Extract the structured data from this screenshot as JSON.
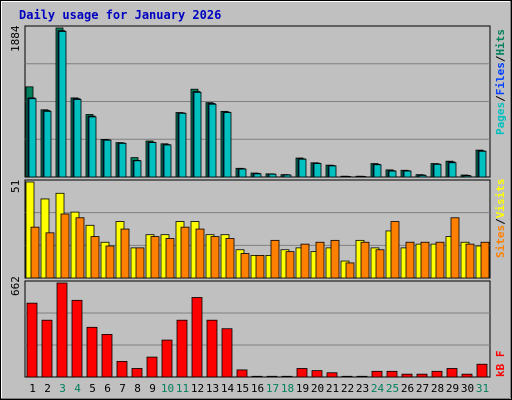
{
  "title": "Daily usage for January 2026",
  "colors": {
    "background": "#C0C0C0",
    "plot_background": "#C0C0C0",
    "title": "#0000C0",
    "hits": "#00805C",
    "files": "#0040FF",
    "pages": "#00C0C0",
    "visits": "#FFFF00",
    "sites": "#FF8000",
    "kbytes": "#FF0000",
    "weekend_label": "#00805C",
    "weekday_label": "#000000"
  },
  "chart_data": [
    {
      "type": "bar",
      "panel": "top",
      "y_max_label": "1884",
      "ylim": [
        0,
        1884
      ],
      "categories": [
        "1",
        "2",
        "3",
        "4",
        "5",
        "6",
        "7",
        "8",
        "9",
        "10",
        "11",
        "12",
        "13",
        "14",
        "15",
        "16",
        "17",
        "18",
        "19",
        "20",
        "21",
        "22",
        "23",
        "24",
        "25",
        "26",
        "27",
        "28",
        "29",
        "30",
        "31"
      ],
      "weekend_days": [
        "3",
        "4",
        "10",
        "11",
        "17",
        "18",
        "24",
        "25",
        "31"
      ],
      "legend": [
        "Pages",
        "/",
        "Files",
        "/",
        "Hits"
      ],
      "series": [
        {
          "name": "Hits",
          "values": [
            1140,
            850,
            1884,
            1000,
            790,
            475,
            435,
            245,
            455,
            420,
            815,
            1110,
            940,
            830,
            110,
            50,
            40,
            30,
            240,
            180,
            150,
            10,
            10,
            170,
            90,
            85,
            30,
            170,
            200,
            25,
            340
          ]
        },
        {
          "name": "Files",
          "values": [
            1000,
            840,
            1850,
            990,
            770,
            470,
            430,
            210,
            440,
            410,
            810,
            1080,
            930,
            820,
            105,
            45,
            38,
            28,
            230,
            175,
            145,
            8,
            8,
            160,
            80,
            80,
            25,
            165,
            190,
            20,
            330
          ]
        },
        {
          "name": "Pages",
          "values": [
            990,
            830,
            1840,
            980,
            760,
            465,
            425,
            205,
            435,
            405,
            805,
            1070,
            920,
            815,
            100,
            40,
            35,
            25,
            225,
            170,
            140,
            5,
            5,
            155,
            75,
            75,
            20,
            160,
            180,
            15,
            325
          ]
        }
      ]
    },
    {
      "type": "bar",
      "panel": "middle",
      "y_max_label": "51",
      "ylim": [
        0,
        51
      ],
      "categories": [
        "1",
        "2",
        "3",
        "4",
        "5",
        "6",
        "7",
        "8",
        "9",
        "10",
        "11",
        "12",
        "13",
        "14",
        "15",
        "16",
        "17",
        "18",
        "19",
        "20",
        "21",
        "22",
        "23",
        "24",
        "25",
        "26",
        "27",
        "28",
        "29",
        "30",
        "31"
      ],
      "legend": [
        "Sites",
        "/",
        "Visits"
      ],
      "series": [
        {
          "name": "Visits",
          "values": [
            51,
            42,
            45,
            35,
            28,
            19,
            30,
            16,
            23,
            23,
            30,
            30,
            23,
            23,
            15,
            12,
            12,
            15,
            16,
            14,
            16,
            9,
            20,
            16,
            25,
            16,
            18,
            18,
            22,
            19,
            17
          ]
        },
        {
          "name": "Sites",
          "values": [
            27,
            24,
            34,
            32,
            22,
            17,
            26,
            16,
            22,
            21,
            27,
            26,
            22,
            21,
            13,
            12,
            20,
            14,
            18,
            19,
            20,
            8,
            19,
            15,
            30,
            19,
            19,
            19,
            32,
            18,
            19
          ]
        }
      ]
    },
    {
      "type": "bar",
      "panel": "bottom",
      "y_max_label": "662",
      "ylim": [
        0,
        662
      ],
      "categories": [
        "1",
        "2",
        "3",
        "4",
        "5",
        "6",
        "7",
        "8",
        "9",
        "10",
        "11",
        "12",
        "13",
        "14",
        "15",
        "16",
        "17",
        "18",
        "19",
        "20",
        "21",
        "22",
        "23",
        "24",
        "25",
        "26",
        "27",
        "28",
        "29",
        "30",
        "31"
      ],
      "legend": [
        "kB",
        "F"
      ],
      "series": [
        {
          "name": "kB F",
          "values": [
            520,
            400,
            662,
            540,
            350,
            300,
            110,
            60,
            140,
            260,
            400,
            560,
            400,
            340,
            50,
            5,
            5,
            5,
            60,
            45,
            30,
            5,
            5,
            40,
            40,
            20,
            20,
            40,
            60,
            20,
            90
          ]
        }
      ]
    }
  ]
}
